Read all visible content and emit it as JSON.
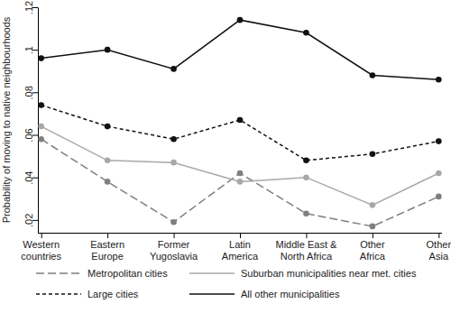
{
  "chart_data": {
    "type": "line",
    "y_label": "Probability of moving to native neighbourhoods",
    "categories": [
      "Western countries",
      "Eastern Europe",
      "Former Yugoslavia",
      "Latin America",
      "Middle East & North Africa",
      "Other Africa",
      "Other Asia"
    ],
    "series": [
      {
        "name": "Metropolitan cities",
        "color": "#7f7f7f",
        "line_style": "long_dash",
        "marker": "circle",
        "values": [
          0.058,
          0.038,
          0.019,
          0.042,
          0.023,
          0.017,
          0.031
        ]
      },
      {
        "name": "Suburban municipalities near met. cities",
        "color": "#a8a8a8",
        "line_style": "solid",
        "marker": "circle",
        "values": [
          0.064,
          0.048,
          0.047,
          0.038,
          0.04,
          0.027,
          0.042
        ]
      },
      {
        "name": "Large cities",
        "color": "#111111",
        "line_style": "dashed",
        "marker": "circle",
        "values": [
          0.074,
          0.064,
          0.058,
          0.067,
          0.048,
          0.051,
          0.057
        ]
      },
      {
        "name": "All other municipalities",
        "color": "#111111",
        "line_style": "solid",
        "marker": "circle",
        "values": [
          0.096,
          0.1,
          0.091,
          0.114,
          0.108,
          0.088,
          0.086
        ]
      }
    ],
    "ylim": [
      0.014,
      0.12
    ],
    "yticks": [
      {
        "value": 0.02,
        "label": ".02"
      },
      {
        "value": 0.04,
        "label": ".04"
      },
      {
        "value": 0.06,
        "label": ".06"
      },
      {
        "value": 0.08,
        "label": ".08"
      },
      {
        "value": 0.1,
        "label": ".1"
      },
      {
        "value": 0.12,
        "label": ".12"
      }
    ],
    "grid": false,
    "legend": "bottom"
  }
}
